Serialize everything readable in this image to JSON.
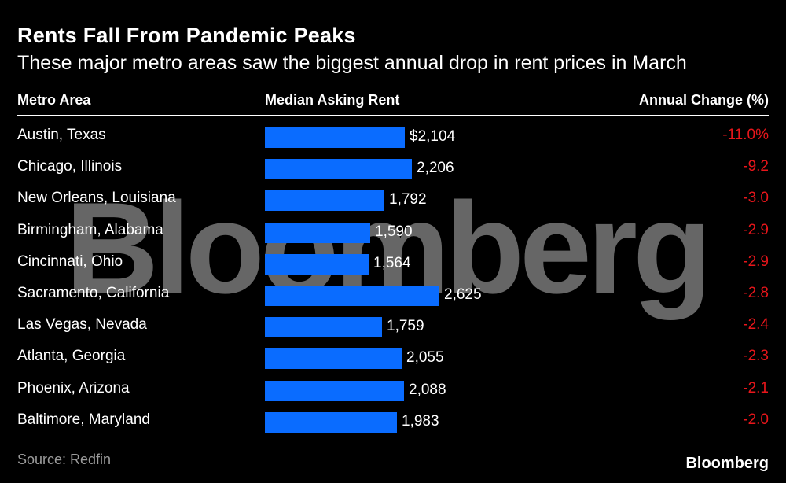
{
  "header": {
    "title": "Rents Fall From Pandemic Peaks",
    "subtitle": "These major metro areas saw the biggest annual drop in rent prices in March"
  },
  "table_headers": {
    "metro": "Metro Area",
    "rent": "Median Asking Rent",
    "change": "Annual Change (%)"
  },
  "footer": {
    "source": "Source: Redfin",
    "brand": "Bloomberg"
  },
  "watermark": "Bloomberg",
  "colors": {
    "bar": "#0a6cff",
    "negative": "#e8161b",
    "background": "#000000"
  },
  "chart_data": {
    "type": "bar",
    "orientation": "horizontal",
    "title": "Rents Fall From Pandemic Peaks",
    "subtitle": "These major metro areas saw the biggest annual drop in rent prices in March",
    "xlim": [
      0,
      2625
    ],
    "categories": [
      "Austin, Texas",
      "Chicago, Illinois",
      "New Orleans, Louisiana",
      "Birmingham, Alabama",
      "Cincinnati, Ohio",
      "Sacramento, California",
      "Las Vegas, Nevada",
      "Atlanta, Georgia",
      "Phoenix, Arizona",
      "Baltimore, Maryland"
    ],
    "series": [
      {
        "name": "Median Asking Rent",
        "values": [
          2104,
          2206,
          1792,
          1590,
          1564,
          2625,
          1759,
          2055,
          2088,
          1983
        ],
        "labels": [
          "$2,104",
          "2,206",
          "1,792",
          "1,590",
          "1,564",
          "2,625",
          "1,759",
          "2,055",
          "2,088",
          "1,983"
        ]
      },
      {
        "name": "Annual Change (%)",
        "values": [
          -11.0,
          -9.2,
          -3.0,
          -2.9,
          -2.9,
          -2.8,
          -2.4,
          -2.3,
          -2.1,
          -2.0
        ],
        "labels": [
          "-11.0%",
          "-9.2",
          "-3.0",
          "-2.9",
          "-2.9",
          "-2.8",
          "-2.4",
          "-2.3",
          "-2.1",
          "-2.0"
        ]
      }
    ]
  }
}
